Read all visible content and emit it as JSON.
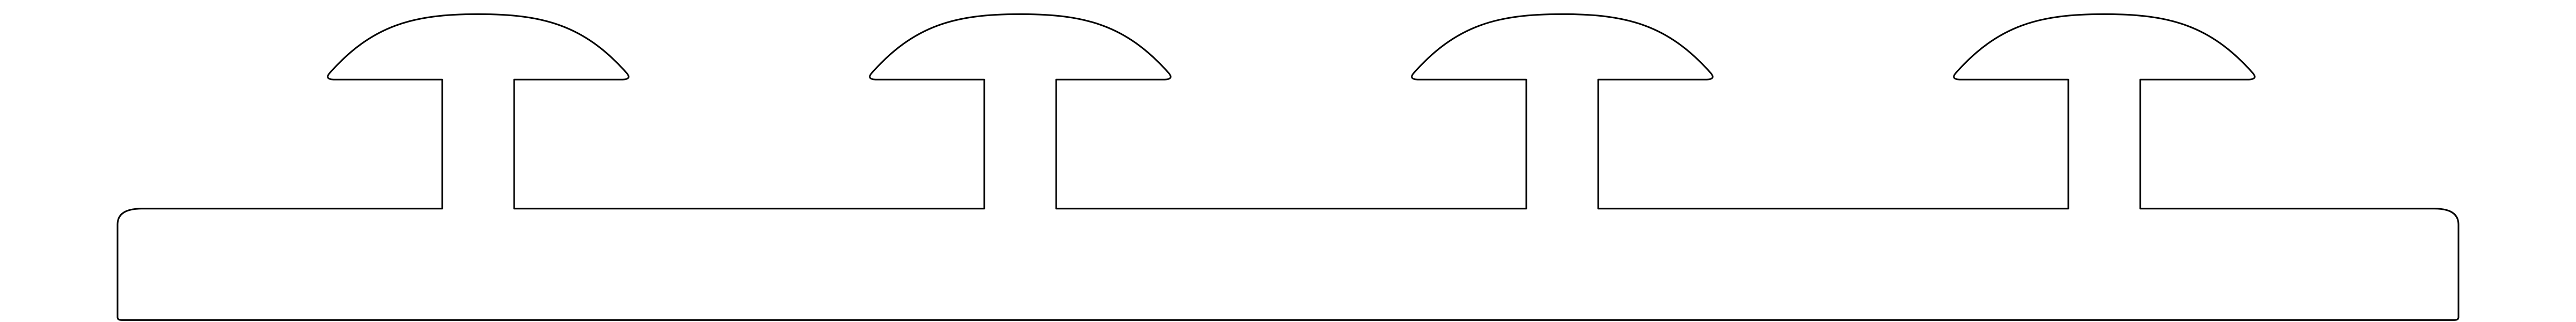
{
  "drawing": {
    "line_color": "#000000",
    "background_color": "#ffffff",
    "mushroom_tab_count": 4
  }
}
